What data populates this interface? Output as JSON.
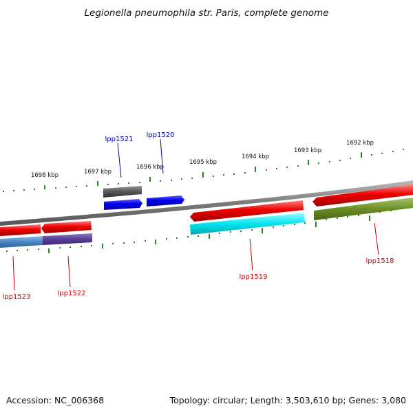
{
  "title": "Legionella pneumophila str. Paris, complete genome",
  "footer": {
    "accession": "Accession: NC_006368",
    "summary": "Topology: circular; Length: 3,503,610 bp; Genes: 3,080"
  },
  "colors": {
    "tick": "#1e8a1e",
    "backbone": "#8a8a8a",
    "forward_label": "#0000bb",
    "reverse_label": "#cc0000"
  },
  "scale": {
    "labels": [
      "1698 kbp",
      "1697 kbp",
      "1696 kbp",
      "1695 kbp",
      "1694 kbp",
      "1693 kbp",
      "1692 kbp"
    ]
  },
  "genes": [
    {
      "id": "lpp1521",
      "label": "lpp1521",
      "strand": "forward",
      "color": "#0000ee"
    },
    {
      "id": "lpp1520",
      "label": "lpp1520",
      "strand": "forward",
      "color": "#0000ee"
    },
    {
      "id": "lpp1523",
      "label": "lpp1523",
      "strand": "reverse",
      "color": "#ee0000"
    },
    {
      "id": "lpp1522",
      "label": "lpp1522",
      "strand": "reverse",
      "color": "#ee0000"
    },
    {
      "id": "lpp1519",
      "label": "lpp1519",
      "strand": "reverse",
      "color": "#ee0000"
    },
    {
      "id": "lpp1518",
      "label": "lpp1518",
      "strand": "reverse",
      "color": "#ee0000"
    }
  ],
  "features": [
    {
      "id": "cog-lpp1521",
      "color": "#555555"
    },
    {
      "id": "cog-lpp1523",
      "color": "#4a86c5"
    },
    {
      "id": "cog-lpp1522",
      "color": "#5a3f96"
    },
    {
      "id": "cog-lpp1519",
      "color": "#00e5ee"
    },
    {
      "id": "cog-lpp1518",
      "color": "#6b8e23"
    }
  ]
}
